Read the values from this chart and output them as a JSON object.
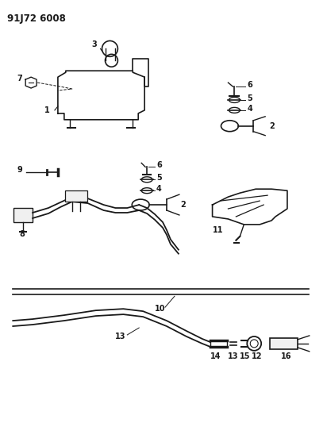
{
  "title": "91J72 6008",
  "background_color": "#ffffff",
  "line_color": "#1a1a1a",
  "fig_width": 4.12,
  "fig_height": 5.33,
  "dpi": 100
}
